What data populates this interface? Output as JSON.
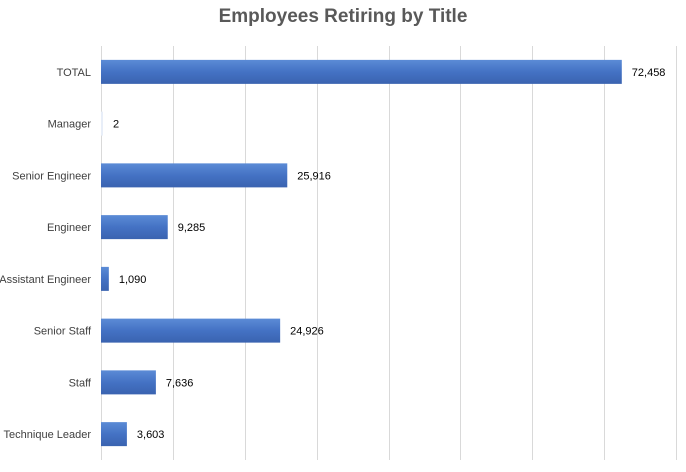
{
  "chart_data": {
    "type": "bar",
    "orientation": "horizontal",
    "title": "Employees Retiring by Title",
    "categories": [
      "TOTAL",
      "Manager",
      "Senior Engineer",
      "Engineer",
      "Assistant Engineer",
      "Senior Staff",
      "Staff",
      "Technique Leader"
    ],
    "values": [
      72458,
      2,
      25916,
      9285,
      1090,
      24926,
      7636,
      3603
    ],
    "value_labels": [
      "72,458",
      "2",
      "25,916",
      "9,285",
      "1,090",
      "24,926",
      "7,636",
      "3,603"
    ],
    "xlim": [
      0,
      80000
    ],
    "grid_step": 10000,
    "grid": true,
    "legend": "none",
    "bar_color": "#4472c4",
    "grid_color": "#d9d9d9"
  }
}
